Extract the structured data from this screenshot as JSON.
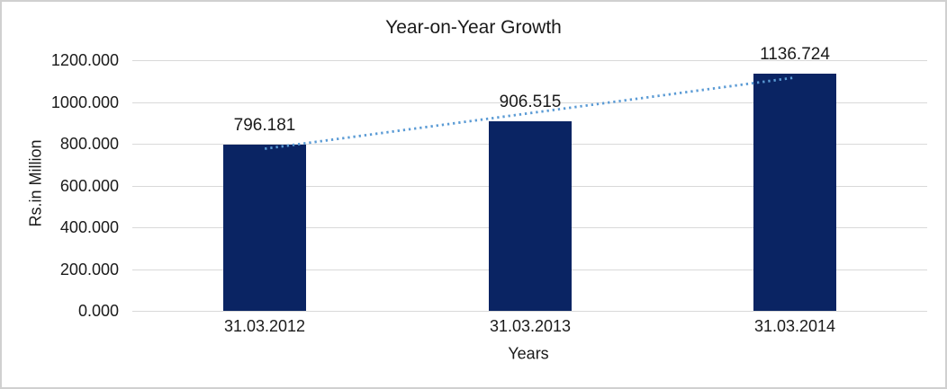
{
  "chart_data": {
    "type": "bar",
    "title": "Year-on-Year Growth",
    "xlabel": "Years",
    "ylabel": "Rs.in Million",
    "categories": [
      "31.03.2012",
      "31.03.2013",
      "31.03.2014"
    ],
    "values": [
      796.181,
      906.515,
      1136.724
    ],
    "data_labels": [
      "796.181",
      "906.515",
      "1136.724"
    ],
    "ylim": [
      0,
      1200
    ],
    "ytick_interval": 200,
    "ytick_labels": [
      "0.000",
      "200.000",
      "400.000",
      "600.000",
      "800.000",
      "1000.000",
      "1200.000"
    ],
    "grid": true,
    "legend": false,
    "trendline": {
      "type": "linear",
      "style": "dotted",
      "color": "#5b9bd5"
    },
    "colors": {
      "bar": "#0a2463",
      "gridline": "#d9d9d9",
      "axis_line": "#d9d9d9",
      "text": "#1a1a1a",
      "frame_border": "#d0d0d0",
      "background": "#ffffff"
    }
  }
}
